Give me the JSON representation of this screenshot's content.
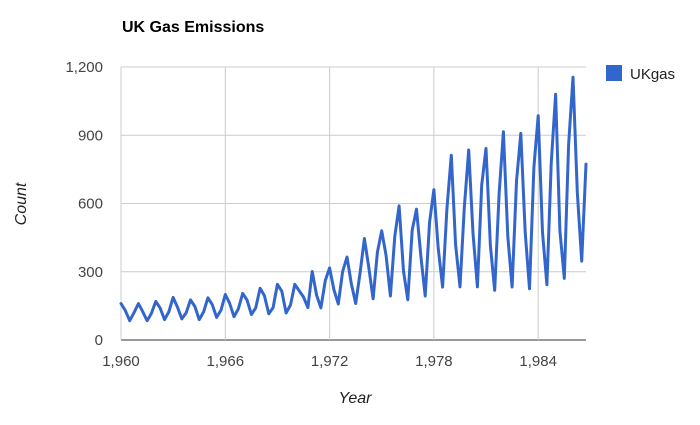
{
  "chart_data": {
    "type": "line",
    "title": "UK Gas Emissions",
    "xlabel": "Year",
    "ylabel": "Count",
    "xlim": [
      1960,
      1986.75
    ],
    "ylim": [
      0,
      1200
    ],
    "x_ticks": [
      "1,960",
      "1,966",
      "1,972",
      "1,978",
      "1,984"
    ],
    "x_tick_values": [
      1960,
      1966,
      1972,
      1978,
      1984
    ],
    "y_ticks": [
      "0",
      "300",
      "600",
      "900",
      "1,200"
    ],
    "y_tick_values": [
      0,
      300,
      600,
      900,
      1200
    ],
    "grid": true,
    "legend_position": "right",
    "series_color": "#3366cc",
    "series": [
      {
        "name": "UKgas",
        "x": [
          1960,
          1960.25,
          1960.5,
          1960.75,
          1961,
          1961.25,
          1961.5,
          1961.75,
          1962,
          1962.25,
          1962.5,
          1962.75,
          1963,
          1963.25,
          1963.5,
          1963.75,
          1964,
          1964.25,
          1964.5,
          1964.75,
          1965,
          1965.25,
          1965.5,
          1965.75,
          1966,
          1966.25,
          1966.5,
          1966.75,
          1967,
          1967.25,
          1967.5,
          1967.75,
          1968,
          1968.25,
          1968.5,
          1968.75,
          1969,
          1969.25,
          1969.5,
          1969.75,
          1970,
          1970.25,
          1970.5,
          1970.75,
          1971,
          1971.25,
          1971.5,
          1971.75,
          1972,
          1972.25,
          1972.5,
          1972.75,
          1973,
          1973.25,
          1973.5,
          1973.75,
          1974,
          1974.25,
          1974.5,
          1974.75,
          1975,
          1975.25,
          1975.5,
          1975.75,
          1976,
          1976.25,
          1976.5,
          1976.75,
          1977,
          1977.25,
          1977.5,
          1977.75,
          1978,
          1978.25,
          1978.5,
          1978.75,
          1979,
          1979.25,
          1979.5,
          1979.75,
          1980,
          1980.25,
          1980.5,
          1980.75,
          1981,
          1981.25,
          1981.5,
          1981.75,
          1982,
          1982.25,
          1982.5,
          1982.75,
          1983,
          1983.25,
          1983.5,
          1983.75,
          1984,
          1984.25,
          1984.5,
          1984.75,
          1985,
          1985.25,
          1985.5,
          1985.75,
          1986,
          1986.25,
          1986.5,
          1986.75
        ],
        "values": [
          160.1,
          129.7,
          84.8,
          120.1,
          160.1,
          124.9,
          84.8,
          116.9,
          169.7,
          140.9,
          89.7,
          123.3,
          187.3,
          144.1,
          92.9,
          120.1,
          176.1,
          147.3,
          89.7,
          123.3,
          185.7,
          155.3,
          99.3,
          131.3,
          200.1,
          161.7,
          102.5,
          136.1,
          204.9,
          176.1,
          112.1,
          140.9,
          227.3,
          195.3,
          115.3,
          142.5,
          244.9,
          214.5,
          118.5,
          153.7,
          244.9,
          216.1,
          188.9,
          142.5,
          301.0,
          196.9,
          141.3,
          261.7,
          317.0,
          220.9,
          158.9,
          300.2,
          365.0,
          248.1,
          160.5,
          292.2,
          446.0,
          321.8,
          181.3,
          385.8,
          480.0,
          371.2,
          193.2,
          455.8,
          590.0,
          303.5,
          176.5,
          483.0,
          575.0,
          367.6,
          193.2,
          519.0,
          661.0,
          403.9,
          232.7,
          575.0,
          812.0,
          418.5,
          233.4,
          581.9,
          835.0,
          468.8,
          233.4,
          680.8,
          842.0,
          413.7,
          218.5,
          641.9,
          915.0,
          455.2,
          232.8,
          697.1,
          908.0,
          473.3,
          225.5,
          759.6,
          986.0,
          473.3,
          242.8,
          774.1,
          1080.0,
          480.5,
          270.8,
          857.9,
          1155.0,
          649.1,
          347.0,
          773.0
        ]
      }
    ]
  }
}
